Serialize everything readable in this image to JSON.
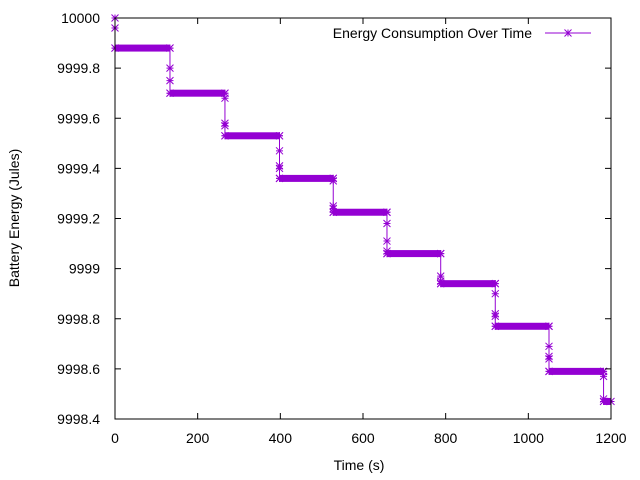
{
  "chart_data": {
    "type": "line",
    "title": "",
    "xlabel": "Time (s)",
    "ylabel": "Battery Energy (Jules)",
    "xlim": [
      0,
      1200
    ],
    "ylim": [
      9998.4,
      10000
    ],
    "xticks": [
      "0",
      "200",
      "400",
      "600",
      "800",
      "1000",
      "1200"
    ],
    "yticks": [
      "9998.4",
      "9998.6",
      "9998.8",
      "9999",
      "9999.2",
      "9999.4",
      "9999.6",
      "9999.8",
      "10000"
    ],
    "grid": false,
    "legend_position": "top-right",
    "series": [
      {
        "name": "Energy Consumption Over Time",
        "color": "#9400d3",
        "marker": "star",
        "steps": [
          {
            "x_start": 0,
            "x_end": 133,
            "y": 9999.88
          },
          {
            "x_start": 133,
            "x_end": 266,
            "y": 9999.7
          },
          {
            "x_start": 266,
            "x_end": 398,
            "y": 9999.53
          },
          {
            "x_start": 398,
            "x_end": 528,
            "y": 9999.36
          },
          {
            "x_start": 528,
            "x_end": 658,
            "y": 9999.225
          },
          {
            "x_start": 658,
            "x_end": 788,
            "y": 9999.06
          },
          {
            "x_start": 788,
            "x_end": 920,
            "y": 9998.94
          },
          {
            "x_start": 920,
            "x_end": 1050,
            "y": 9998.77
          },
          {
            "x_start": 1050,
            "x_end": 1182,
            "y": 9998.59
          },
          {
            "x_start": 1182,
            "x_end": 1200,
            "y": 9998.47
          }
        ],
        "transitions": [
          {
            "x": 0,
            "y": [
              10000,
              9999.96,
              9999.88
            ]
          },
          {
            "x": 133,
            "y": [
              9999.88,
              9999.8,
              9999.75,
              9999.7
            ]
          },
          {
            "x": 266,
            "y": [
              9999.7,
              9999.68,
              9999.58,
              9999.57,
              9999.53
            ]
          },
          {
            "x": 398,
            "y": [
              9999.53,
              9999.47,
              9999.41,
              9999.4,
              9999.36
            ]
          },
          {
            "x": 528,
            "y": [
              9999.36,
              9999.35,
              9999.25,
              9999.24,
              9999.225
            ]
          },
          {
            "x": 658,
            "y": [
              9999.225,
              9999.18,
              9999.11,
              9999.07,
              9999.06
            ]
          },
          {
            "x": 788,
            "y": [
              9999.06,
              9998.97,
              9998.95,
              9998.94
            ]
          },
          {
            "x": 920,
            "y": [
              9998.94,
              9998.9,
              9998.82,
              9998.81,
              9998.77
            ]
          },
          {
            "x": 1050,
            "y": [
              9998.77,
              9998.69,
              9998.65,
              9998.64,
              9998.59
            ]
          },
          {
            "x": 1182,
            "y": [
              9998.59,
              9998.57,
              9998.48,
              9998.47
            ]
          }
        ]
      }
    ]
  }
}
